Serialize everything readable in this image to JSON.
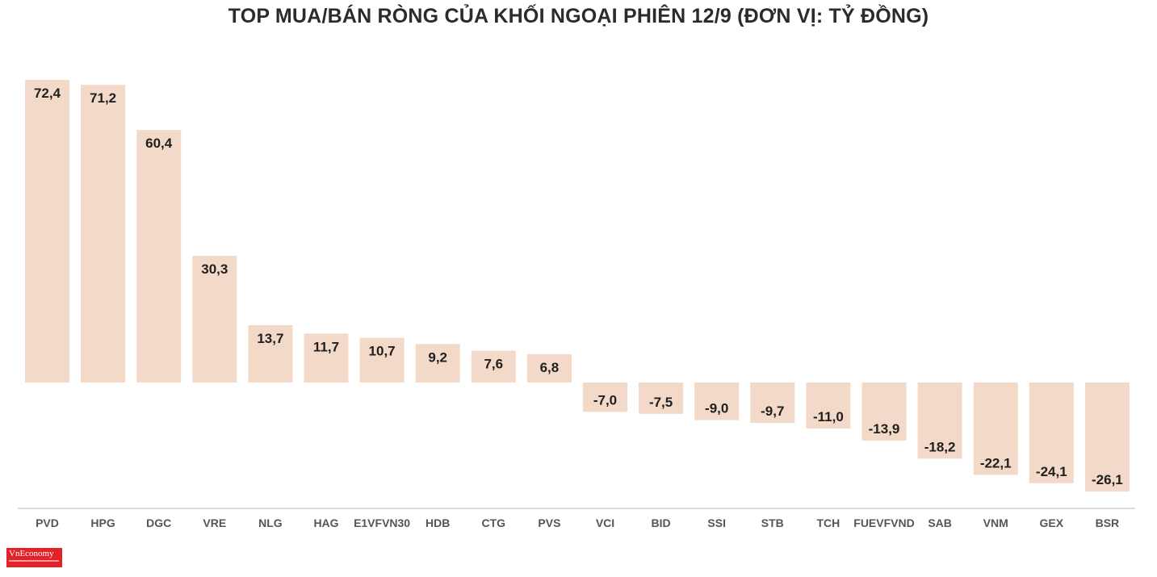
{
  "chart_data": {
    "type": "bar",
    "title": "TOP MUA/BÁN RÒNG CỦA KHỐI NGOẠI PHIÊN 12/9 (ĐƠN VỊ: TỶ ĐỒNG)",
    "categories": [
      "PVD",
      "HPG",
      "DGC",
      "VRE",
      "NLG",
      "HAG",
      "E1VFVN30",
      "HDB",
      "CTG",
      "PVS",
      "VCI",
      "BID",
      "SSI",
      "STB",
      "TCH",
      "FUEVFVND",
      "SAB",
      "VNM",
      "GEX",
      "BSR"
    ],
    "values": [
      72.4,
      71.2,
      60.4,
      30.3,
      13.7,
      11.7,
      10.7,
      9.2,
      7.6,
      6.8,
      -7.0,
      -7.5,
      -9.0,
      -9.7,
      -11.0,
      -13.9,
      -18.2,
      -22.1,
      -24.1,
      -26.1
    ],
    "value_labels": [
      "72,4",
      "71,2",
      "60,4",
      "30,3",
      "13,7",
      "11,7",
      "10,7",
      "9,2",
      "7,6",
      "6,8",
      "-7,0",
      "-7,5",
      "-9,0",
      "-9,7",
      "-11,0",
      "-13,9",
      "-18,2",
      "-22,1",
      "-24,1",
      "-26,1"
    ],
    "xlabel": "",
    "ylabel": "",
    "ylim": [
      -26.1,
      72.4
    ],
    "grid": false,
    "bar_color": "#f2d9c8"
  },
  "logo": {
    "text": "VnEconomy"
  }
}
